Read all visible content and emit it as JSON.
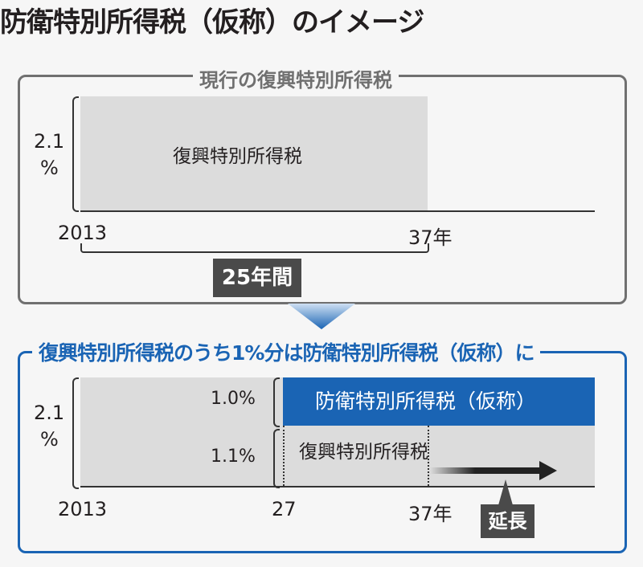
{
  "title": "防衛特別所得税（仮称）のイメージ",
  "current": {
    "label": "現行の復興特別所得税",
    "rate": "2.1",
    "rate_unit": "%",
    "bar_label": "復興特別所得税",
    "x_start": "2013",
    "x_end": "37年",
    "duration": "25年間"
  },
  "proposed": {
    "label": "復興特別所得税のうち1%分は防衛特別所得税（仮称）に",
    "rate": "2.1",
    "rate_unit": "%",
    "defense_rate": "1.0%",
    "defense_label": "防衛特別所得税（仮称）",
    "reconstruction_rate": "1.1%",
    "reconstruction_label": "復興特別所得税",
    "x_start": "2013",
    "x_mid": "27",
    "x_end": "37年",
    "extension": "延長"
  },
  "colors": {
    "blue": "#1a64b4",
    "gray_bar": "#dcdcdc",
    "border_gray": "#707070"
  }
}
